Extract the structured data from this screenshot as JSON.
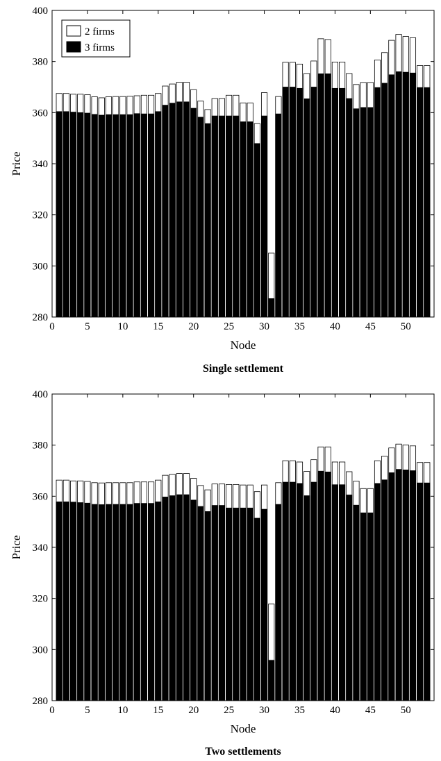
{
  "figure": {
    "legend": [
      {
        "name": "2 firms",
        "color": "#ffffff"
      },
      {
        "name": "3 firms",
        "color": "#000000"
      }
    ]
  },
  "chart_data": [
    {
      "type": "bar",
      "stacked": false,
      "overlay": true,
      "title": "Single settlement",
      "xlabel": "Node",
      "ylabel": "Price",
      "xlim": [
        0,
        54
      ],
      "ylim": [
        280,
        400
      ],
      "xticks": [
        0,
        5,
        10,
        15,
        20,
        25,
        30,
        35,
        40,
        45,
        50
      ],
      "yticks": [
        280,
        300,
        320,
        340,
        360,
        380,
        400
      ],
      "x": [
        1,
        2,
        3,
        4,
        5,
        6,
        7,
        8,
        9,
        10,
        11,
        12,
        13,
        14,
        15,
        16,
        17,
        18,
        19,
        20,
        21,
        22,
        23,
        24,
        25,
        26,
        27,
        28,
        29,
        30,
        31,
        32,
        33,
        34,
        35,
        36,
        37,
        38,
        39,
        40,
        41,
        42,
        43,
        44,
        45,
        46,
        47,
        48,
        49,
        50,
        51,
        52,
        53
      ],
      "series": [
        {
          "name": "2 firms",
          "color": "#ffffff",
          "values": [
            367.5,
            367.5,
            367.2,
            367.2,
            367.0,
            366.2,
            365.8,
            366.2,
            366.3,
            366.3,
            366.4,
            366.6,
            366.8,
            366.8,
            367.5,
            370.4,
            371.2,
            371.9,
            371.9,
            369.0,
            364.5,
            361.2,
            365.5,
            365.5,
            366.8,
            366.8,
            363.8,
            363.8,
            355.7,
            367.8,
            305.0,
            366.3,
            379.7,
            379.7,
            379.0,
            375.3,
            380.2,
            388.9,
            388.6,
            379.8,
            379.8,
            375.3,
            371.0,
            371.8,
            371.8,
            380.6,
            383.5,
            388.3,
            390.6,
            389.8,
            389.3,
            378.4,
            378.4
          ]
        },
        {
          "name": "3 firms",
          "color": "#000000",
          "values": [
            360.4,
            360.4,
            360.2,
            360.0,
            359.8,
            359.3,
            359.0,
            359.2,
            359.2,
            359.2,
            359.2,
            359.6,
            359.5,
            359.5,
            360.4,
            362.9,
            363.7,
            364.2,
            364.2,
            361.7,
            358.2,
            355.7,
            358.7,
            358.7,
            358.7,
            358.7,
            356.4,
            356.4,
            347.9,
            358.7,
            287.2,
            359.5,
            370.0,
            370.0,
            369.5,
            365.4,
            370.0,
            375.2,
            375.2,
            369.5,
            369.5,
            365.5,
            361.5,
            362.0,
            362.0,
            369.8,
            371.5,
            374.8,
            376.0,
            375.8,
            375.5,
            369.8,
            369.8
          ]
        }
      ]
    },
    {
      "type": "bar",
      "stacked": false,
      "overlay": true,
      "title": "Two settlements",
      "xlabel": "Node",
      "ylabel": "Price",
      "xlim": [
        0,
        54
      ],
      "ylim": [
        280,
        400
      ],
      "xticks": [
        0,
        5,
        10,
        15,
        20,
        25,
        30,
        35,
        40,
        45,
        50
      ],
      "yticks": [
        280,
        300,
        320,
        340,
        360,
        380,
        400
      ],
      "x": [
        1,
        2,
        3,
        4,
        5,
        6,
        7,
        8,
        9,
        10,
        11,
        12,
        13,
        14,
        15,
        16,
        17,
        18,
        19,
        20,
        21,
        22,
        23,
        24,
        25,
        26,
        27,
        28,
        29,
        30,
        31,
        32,
        33,
        34,
        35,
        36,
        37,
        38,
        39,
        40,
        41,
        42,
        43,
        44,
        45,
        46,
        47,
        48,
        49,
        50,
        51,
        52,
        53
      ],
      "series": [
        {
          "name": "2 firms",
          "color": "#ffffff",
          "values": [
            366.3,
            366.3,
            366.0,
            366.0,
            365.8,
            365.3,
            365.2,
            365.3,
            365.3,
            365.3,
            365.3,
            365.6,
            365.6,
            365.6,
            366.3,
            368.2,
            368.6,
            368.9,
            368.9,
            367.0,
            364.2,
            362.5,
            364.8,
            364.8,
            364.6,
            364.6,
            364.4,
            364.4,
            361.8,
            364.4,
            317.8,
            365.3,
            373.9,
            373.9,
            373.4,
            369.7,
            374.3,
            379.3,
            379.3,
            373.4,
            373.4,
            369.6,
            365.9,
            363.0,
            363.0,
            373.9,
            375.7,
            378.9,
            380.4,
            380.1,
            379.7,
            373.2,
            373.2
          ]
        },
        {
          "name": "3 firms",
          "color": "#000000",
          "values": [
            357.8,
            357.8,
            357.7,
            357.5,
            357.3,
            356.8,
            356.7,
            356.8,
            356.8,
            356.8,
            356.8,
            357.2,
            357.2,
            357.2,
            357.8,
            359.7,
            360.2,
            360.6,
            360.6,
            358.5,
            356.0,
            354.0,
            356.4,
            356.4,
            355.4,
            355.4,
            355.4,
            355.4,
            351.4,
            354.9,
            295.8,
            356.8,
            365.5,
            365.5,
            365.0,
            360.2,
            365.5,
            369.8,
            369.5,
            364.5,
            364.5,
            360.5,
            356.5,
            353.5,
            353.5,
            365.0,
            366.4,
            369.2,
            370.5,
            370.3,
            370.0,
            365.2,
            365.2
          ]
        }
      ]
    }
  ]
}
